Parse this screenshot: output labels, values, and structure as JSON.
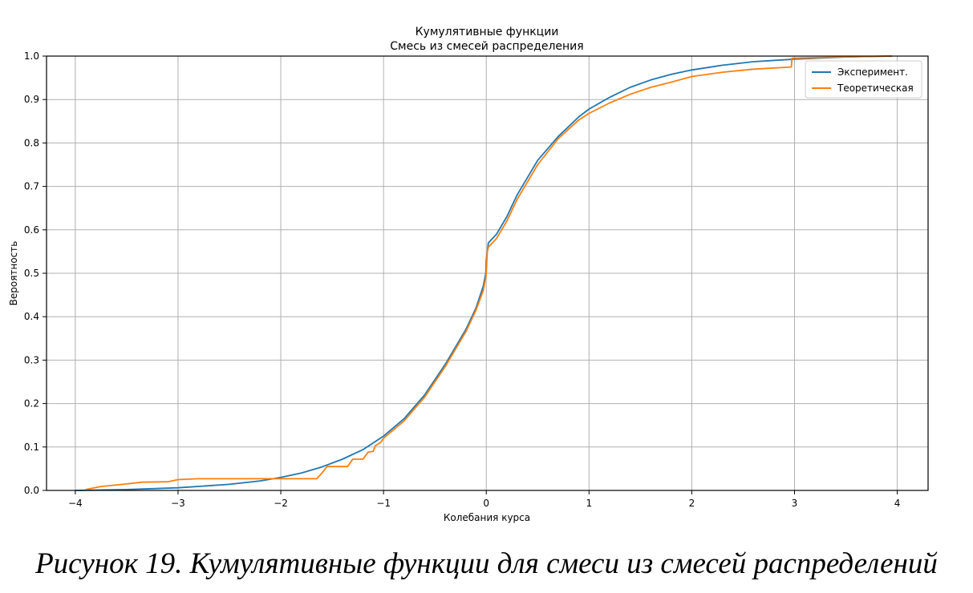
{
  "chart_data": {
    "type": "line",
    "title": "Кумулятивные функции",
    "subtitle": "Смесь из смесей распределения",
    "xlabel": "Колебания курса",
    "ylabel": "Вероятность",
    "xlim": [
      -4.28,
      4.3
    ],
    "ylim": [
      0,
      1
    ],
    "grid": true,
    "legend_position": "top-right",
    "x_ticks": [
      {
        "value": -4,
        "label": "−4"
      },
      {
        "value": -3,
        "label": "−3"
      },
      {
        "value": -2,
        "label": "−2"
      },
      {
        "value": -1,
        "label": "−1"
      },
      {
        "value": 0,
        "label": "0"
      },
      {
        "value": 1,
        "label": "1"
      },
      {
        "value": 2,
        "label": "2"
      },
      {
        "value": 3,
        "label": "3"
      },
      {
        "value": 4,
        "label": "4"
      }
    ],
    "y_ticks": [
      {
        "value": 0.0,
        "label": "0.0"
      },
      {
        "value": 0.1,
        "label": "0.1"
      },
      {
        "value": 0.2,
        "label": "0.2"
      },
      {
        "value": 0.3,
        "label": "0.3"
      },
      {
        "value": 0.4,
        "label": "0.4"
      },
      {
        "value": 0.5,
        "label": "0.5"
      },
      {
        "value": 0.6,
        "label": "0.6"
      },
      {
        "value": 0.7,
        "label": "0.7"
      },
      {
        "value": 0.8,
        "label": "0.8"
      },
      {
        "value": 0.9,
        "label": "0.9"
      },
      {
        "value": 1.0,
        "label": "1.0"
      }
    ],
    "series": [
      {
        "name": "Эксперимент.",
        "color": "#1f77b4",
        "points": [
          [
            -4.0,
            0.0
          ],
          [
            -3.5,
            0.002
          ],
          [
            -3.0,
            0.006
          ],
          [
            -2.5,
            0.014
          ],
          [
            -2.2,
            0.022
          ],
          [
            -2.0,
            0.03
          ],
          [
            -1.8,
            0.04
          ],
          [
            -1.6,
            0.054
          ],
          [
            -1.4,
            0.072
          ],
          [
            -1.2,
            0.094
          ],
          [
            -1.0,
            0.125
          ],
          [
            -0.8,
            0.165
          ],
          [
            -0.6,
            0.22
          ],
          [
            -0.4,
            0.29
          ],
          [
            -0.2,
            0.37
          ],
          [
            -0.1,
            0.42
          ],
          [
            -0.03,
            0.47
          ],
          [
            -0.005,
            0.5
          ],
          [
            0.0,
            0.53
          ],
          [
            0.01,
            0.55
          ],
          [
            0.02,
            0.57
          ],
          [
            0.1,
            0.59
          ],
          [
            0.2,
            0.63
          ],
          [
            0.3,
            0.68
          ],
          [
            0.5,
            0.76
          ],
          [
            0.7,
            0.815
          ],
          [
            0.9,
            0.86
          ],
          [
            1.0,
            0.878
          ],
          [
            1.2,
            0.905
          ],
          [
            1.4,
            0.928
          ],
          [
            1.6,
            0.945
          ],
          [
            1.8,
            0.958
          ],
          [
            2.0,
            0.968
          ],
          [
            2.3,
            0.979
          ],
          [
            2.6,
            0.987
          ],
          [
            3.0,
            0.993
          ],
          [
            3.5,
            0.998
          ],
          [
            3.95,
            1.0
          ]
        ]
      },
      {
        "name": "Теоретическая",
        "color": "#ff7f0e",
        "points": [
          [
            -3.9,
            0.002
          ],
          [
            -3.75,
            0.009
          ],
          [
            -3.5,
            0.015
          ],
          [
            -3.35,
            0.019
          ],
          [
            -3.1,
            0.02
          ],
          [
            -3.0,
            0.025
          ],
          [
            -2.8,
            0.027
          ],
          [
            -1.65,
            0.027
          ],
          [
            -1.6,
            0.04
          ],
          [
            -1.55,
            0.055
          ],
          [
            -1.35,
            0.055
          ],
          [
            -1.32,
            0.065
          ],
          [
            -1.3,
            0.072
          ],
          [
            -1.2,
            0.072
          ],
          [
            -1.15,
            0.088
          ],
          [
            -1.1,
            0.09
          ],
          [
            -1.08,
            0.103
          ],
          [
            -1.03,
            0.11
          ],
          [
            -1.0,
            0.12
          ],
          [
            -0.8,
            0.16
          ],
          [
            -0.6,
            0.215
          ],
          [
            -0.4,
            0.285
          ],
          [
            -0.2,
            0.365
          ],
          [
            -0.1,
            0.415
          ],
          [
            -0.03,
            0.46
          ],
          [
            -0.005,
            0.49
          ],
          [
            0.0,
            0.5
          ],
          [
            0.01,
            0.55
          ],
          [
            0.02,
            0.56
          ],
          [
            0.1,
            0.58
          ],
          [
            0.2,
            0.62
          ],
          [
            0.3,
            0.67
          ],
          [
            0.5,
            0.75
          ],
          [
            0.7,
            0.81
          ],
          [
            0.9,
            0.853
          ],
          [
            1.0,
            0.868
          ],
          [
            1.2,
            0.892
          ],
          [
            1.4,
            0.912
          ],
          [
            1.6,
            0.928
          ],
          [
            1.8,
            0.94
          ],
          [
            2.0,
            0.953
          ],
          [
            2.3,
            0.963
          ],
          [
            2.6,
            0.97
          ],
          [
            2.97,
            0.975
          ],
          [
            2.975,
            0.995
          ],
          [
            3.3,
            0.997
          ],
          [
            3.7,
            0.999
          ],
          [
            3.95,
            1.0
          ]
        ]
      }
    ]
  },
  "caption": "Рисунок 19. Кумулятивные функции для смеси из смесей распределений"
}
